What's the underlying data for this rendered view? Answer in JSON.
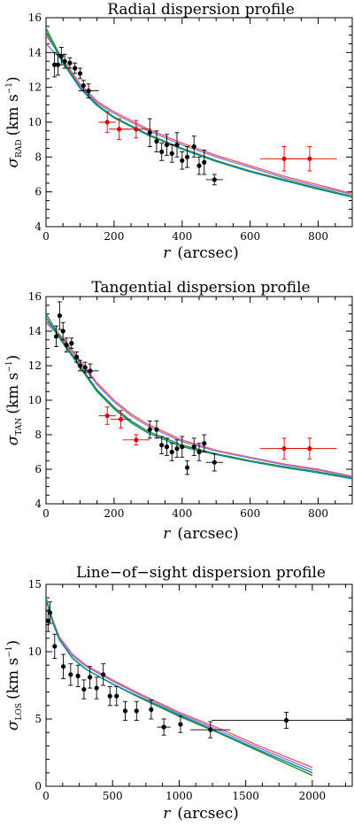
{
  "chart_data": [
    {
      "type": "scatter",
      "title": "Radial dispersion profile",
      "xlabel": "r (arcsec)",
      "ylabel": "σRAD (km s−1)",
      "ylabel_parts": {
        "sigma": "σ",
        "sub": "RAD",
        "unit": "(km s",
        "exp": "−1",
        "close": ")"
      },
      "xlabel_parts": {
        "var": "r",
        "unit": "(arcsec)"
      },
      "xlim": [
        0,
        900
      ],
      "ylim": [
        4,
        16
      ],
      "xticks": [
        0,
        200,
        400,
        600,
        800
      ],
      "yticks": [
        4,
        6,
        8,
        10,
        12,
        14,
        16
      ],
      "series": [
        {
          "marker_color": "#000000",
          "points": [
            {
              "x": 25,
              "y": 13.3,
              "xerr": 0,
              "yerr": 0.7
            },
            {
              "x": 35,
              "y": 13.3,
              "xerr": 0,
              "yerr": 0.6
            },
            {
              "x": 45,
              "y": 13.8,
              "xerr": 0,
              "yerr": 0.5
            },
            {
              "x": 55,
              "y": 13.5,
              "xerr": 0,
              "yerr": 0.4
            },
            {
              "x": 70,
              "y": 13.4,
              "xerr": 0,
              "yerr": 0.3
            },
            {
              "x": 85,
              "y": 13.1,
              "xerr": 0,
              "yerr": 0.3
            },
            {
              "x": 100,
              "y": 12.8,
              "xerr": 0,
              "yerr": 0.3
            },
            {
              "x": 110,
              "y": 12.1,
              "xerr": 0,
              "yerr": 0.3
            },
            {
              "x": 125,
              "y": 11.8,
              "xerr": 30,
              "yerr": 0.4
            },
            {
              "x": 305,
              "y": 9.4,
              "xerr": 0,
              "yerr": 0.8
            },
            {
              "x": 325,
              "y": 8.9,
              "xerr": 0,
              "yerr": 0.6
            },
            {
              "x": 340,
              "y": 8.3,
              "xerr": 0,
              "yerr": 0.5
            },
            {
              "x": 355,
              "y": 8.7,
              "xerr": 0,
              "yerr": 0.6
            },
            {
              "x": 370,
              "y": 8.2,
              "xerr": 0,
              "yerr": 0.5
            },
            {
              "x": 385,
              "y": 8.7,
              "xerr": 0,
              "yerr": 0.7
            },
            {
              "x": 400,
              "y": 7.8,
              "xerr": 0,
              "yerr": 0.5
            },
            {
              "x": 415,
              "y": 8.0,
              "xerr": 0,
              "yerr": 0.6
            },
            {
              "x": 435,
              "y": 8.6,
              "xerr": 0,
              "yerr": 0.6
            },
            {
              "x": 450,
              "y": 7.5,
              "xerr": 0,
              "yerr": 0.5
            },
            {
              "x": 465,
              "y": 7.7,
              "xerr": 0,
              "yerr": 0.7
            },
            {
              "x": 495,
              "y": 6.7,
              "xerr": 25,
              "yerr": 0.3
            }
          ]
        },
        {
          "marker_color": "#e00000",
          "points": [
            {
              "x": 180,
              "y": 10.0,
              "xerr": 25,
              "yerr": 0.6
            },
            {
              "x": 215,
              "y": 9.6,
              "xerr": 30,
              "yerr": 0.6
            },
            {
              "x": 265,
              "y": 9.6,
              "xerr": 45,
              "yerr": 0.5
            },
            {
              "x": 700,
              "y": 7.9,
              "xerr": 70,
              "yerr": 0.7
            },
            {
              "x": 775,
              "y": 7.9,
              "xerr": 80,
              "yerr": 0.7
            }
          ]
        }
      ],
      "model_curves": [
        {
          "color": "#ff5a5a",
          "x": [
            0,
            50,
            100,
            150,
            200,
            300,
            400,
            500,
            600,
            700,
            800,
            900
          ],
          "y": [
            15.0,
            13.6,
            12.2,
            11.2,
            10.6,
            9.6,
            8.8,
            8.1,
            7.5,
            6.9,
            6.4,
            5.9
          ]
        },
        {
          "color": "#8080ff",
          "x": [
            0,
            50,
            100,
            150,
            200,
            300,
            400,
            500,
            600,
            700,
            800,
            900
          ],
          "y": [
            14.5,
            13.5,
            12.1,
            11.1,
            10.5,
            9.5,
            8.7,
            8.0,
            7.4,
            6.8,
            6.3,
            5.85
          ]
        },
        {
          "color": "#2e8b2e",
          "x": [
            0,
            50,
            100,
            150,
            200,
            300,
            400,
            500,
            600,
            700,
            800,
            900
          ],
          "y": [
            15.4,
            13.5,
            12.0,
            11.0,
            10.3,
            9.3,
            8.5,
            7.8,
            7.2,
            6.7,
            6.2,
            5.75
          ]
        },
        {
          "color": "#008b8b",
          "x": [
            0,
            50,
            100,
            150,
            200,
            300,
            400,
            500,
            600,
            700,
            800,
            900
          ],
          "y": [
            15.2,
            13.4,
            11.95,
            10.95,
            10.25,
            9.25,
            8.45,
            7.75,
            7.15,
            6.65,
            6.15,
            5.7
          ]
        }
      ]
    },
    {
      "type": "scatter",
      "title": "Tangential dispersion profile",
      "xlabel": "r (arcsec)",
      "ylabel": "σTAN (km s−1)",
      "ylabel_parts": {
        "sigma": "σ",
        "sub": "TAN",
        "unit": "(km s",
        "exp": "−1",
        "close": ")"
      },
      "xlabel_parts": {
        "var": "r",
        "unit": "(arcsec)"
      },
      "xlim": [
        0,
        900
      ],
      "ylim": [
        4,
        16
      ],
      "xticks": [
        0,
        200,
        400,
        600,
        800
      ],
      "yticks": [
        4,
        6,
        8,
        10,
        12,
        14,
        16
      ],
      "series": [
        {
          "marker_color": "#000000",
          "points": [
            {
              "x": 30,
              "y": 13.7,
              "xerr": 0,
              "yerr": 0.6
            },
            {
              "x": 40,
              "y": 14.9,
              "xerr": 0,
              "yerr": 0.8
            },
            {
              "x": 50,
              "y": 14.0,
              "xerr": 0,
              "yerr": 0.5
            },
            {
              "x": 60,
              "y": 13.2,
              "xerr": 0,
              "yerr": 0.4
            },
            {
              "x": 75,
              "y": 13.3,
              "xerr": 0,
              "yerr": 0.3
            },
            {
              "x": 90,
              "y": 12.5,
              "xerr": 0,
              "yerr": 0.3
            },
            {
              "x": 100,
              "y": 12.0,
              "xerr": 0,
              "yerr": 0.3
            },
            {
              "x": 115,
              "y": 11.9,
              "xerr": 0,
              "yerr": 0.3
            },
            {
              "x": 130,
              "y": 11.7,
              "xerr": 25,
              "yerr": 0.4
            },
            {
              "x": 305,
              "y": 8.3,
              "xerr": 0,
              "yerr": 0.5
            },
            {
              "x": 325,
              "y": 8.3,
              "xerr": 0,
              "yerr": 0.5
            },
            {
              "x": 340,
              "y": 7.4,
              "xerr": 0,
              "yerr": 0.5
            },
            {
              "x": 355,
              "y": 7.3,
              "xerr": 0,
              "yerr": 0.5
            },
            {
              "x": 370,
              "y": 7.0,
              "xerr": 0,
              "yerr": 0.5
            },
            {
              "x": 385,
              "y": 7.2,
              "xerr": 0,
              "yerr": 0.5
            },
            {
              "x": 400,
              "y": 7.3,
              "xerr": 0,
              "yerr": 0.6
            },
            {
              "x": 415,
              "y": 6.1,
              "xerr": 0,
              "yerr": 0.4
            },
            {
              "x": 435,
              "y": 7.3,
              "xerr": 0,
              "yerr": 0.5
            },
            {
              "x": 450,
              "y": 7.0,
              "xerr": 0,
              "yerr": 0.5
            },
            {
              "x": 465,
              "y": 7.5,
              "xerr": 0,
              "yerr": 0.5
            },
            {
              "x": 495,
              "y": 6.4,
              "xerr": 25,
              "yerr": 0.5
            }
          ]
        },
        {
          "marker_color": "#e00000",
          "points": [
            {
              "x": 180,
              "y": 9.1,
              "xerr": 25,
              "yerr": 0.5
            },
            {
              "x": 220,
              "y": 8.9,
              "xerr": 30,
              "yerr": 0.5
            },
            {
              "x": 265,
              "y": 7.7,
              "xerr": 40,
              "yerr": 0.3
            },
            {
              "x": 700,
              "y": 7.2,
              "xerr": 70,
              "yerr": 0.6
            },
            {
              "x": 775,
              "y": 7.2,
              "xerr": 80,
              "yerr": 0.6
            }
          ]
        }
      ],
      "model_curves": [
        {
          "color": "#ff5a5a",
          "x": [
            0,
            50,
            100,
            150,
            200,
            250,
            300,
            400,
            500,
            600,
            700,
            800,
            900
          ],
          "y": [
            14.6,
            13.6,
            12.3,
            11.0,
            10.0,
            9.2,
            8.6,
            7.7,
            7.1,
            6.7,
            6.3,
            6.0,
            5.6
          ]
        },
        {
          "color": "#8080ff",
          "x": [
            0,
            50,
            100,
            150,
            200,
            250,
            300,
            400,
            500,
            600,
            700,
            800,
            900
          ],
          "y": [
            14.5,
            13.5,
            12.2,
            10.9,
            9.9,
            9.1,
            8.5,
            7.6,
            7.05,
            6.65,
            6.25,
            5.95,
            5.55
          ]
        },
        {
          "color": "#2e8b2e",
          "x": [
            0,
            50,
            100,
            150,
            200,
            250,
            300,
            400,
            500,
            600,
            700,
            800,
            900
          ],
          "y": [
            15.0,
            13.4,
            12.0,
            10.6,
            9.6,
            8.8,
            8.2,
            7.4,
            6.9,
            6.5,
            6.15,
            5.85,
            5.5
          ]
        },
        {
          "color": "#008b8b",
          "x": [
            0,
            50,
            100,
            150,
            200,
            250,
            300,
            400,
            500,
            600,
            700,
            800,
            900
          ],
          "y": [
            14.8,
            13.3,
            11.9,
            10.5,
            9.5,
            8.7,
            8.1,
            7.3,
            6.85,
            6.45,
            6.1,
            5.8,
            5.45
          ]
        }
      ]
    },
    {
      "type": "scatter",
      "title": "Line−of−sight dispersion profile",
      "xlabel": "r (arcsec)",
      "ylabel": "σLOS (km s−1)",
      "ylabel_parts": {
        "sigma": "σ",
        "sub": "LOS",
        "unit": "(km s",
        "exp": "−1",
        "close": ")"
      },
      "xlabel_parts": {
        "var": "r",
        "unit": "(arcsec)"
      },
      "xlim": [
        0,
        2300
      ],
      "ylim": [
        0,
        15
      ],
      "xticks": [
        0,
        500,
        1000,
        1500,
        2000
      ],
      "yticks": [
        0,
        5,
        10,
        15
      ],
      "series": [
        {
          "marker_color": "#000000",
          "points": [
            {
              "x": 15,
              "y": 12.3,
              "xerr": 0,
              "yerr": 0.8
            },
            {
              "x": 30,
              "y": 12.9,
              "xerr": 0,
              "yerr": 0.8
            },
            {
              "x": 65,
              "y": 10.4,
              "xerr": 0,
              "yerr": 0.9
            },
            {
              "x": 130,
              "y": 8.9,
              "xerr": 0,
              "yerr": 0.9
            },
            {
              "x": 185,
              "y": 8.3,
              "xerr": 0,
              "yerr": 0.8
            },
            {
              "x": 240,
              "y": 8.2,
              "xerr": 0,
              "yerr": 0.8
            },
            {
              "x": 285,
              "y": 7.2,
              "xerr": 0,
              "yerr": 0.7
            },
            {
              "x": 330,
              "y": 8.1,
              "xerr": 0,
              "yerr": 0.8
            },
            {
              "x": 380,
              "y": 7.3,
              "xerr": 0,
              "yerr": 0.8
            },
            {
              "x": 430,
              "y": 8.3,
              "xerr": 0,
              "yerr": 0.8
            },
            {
              "x": 480,
              "y": 6.7,
              "xerr": 0,
              "yerr": 0.7
            },
            {
              "x": 530,
              "y": 6.7,
              "xerr": 0,
              "yerr": 0.7
            },
            {
              "x": 595,
              "y": 5.6,
              "xerr": 0,
              "yerr": 0.7
            },
            {
              "x": 680,
              "y": 5.6,
              "xerr": 0,
              "yerr": 0.7
            },
            {
              "x": 790,
              "y": 5.7,
              "xerr": 0,
              "yerr": 0.7
            },
            {
              "x": 885,
              "y": 4.4,
              "xerr": 50,
              "yerr": 0.6
            },
            {
              "x": 1010,
              "y": 4.6,
              "xerr": 0,
              "yerr": 0.6
            },
            {
              "x": 1235,
              "y": 4.2,
              "xerr": 150,
              "yerr": 0.6
            },
            {
              "x": 1805,
              "y": 4.9,
              "xerr": 560,
              "yerr": 0.6
            }
          ]
        }
      ],
      "model_curves": [
        {
          "color": "#ff5a5a",
          "x": [
            0,
            50,
            100,
            200,
            300,
            500,
            700,
            1000,
            1300,
            1600,
            2000
          ],
          "y": [
            14.0,
            12.4,
            11.1,
            9.8,
            9.0,
            7.9,
            6.9,
            5.5,
            4.3,
            3.0,
            1.4
          ]
        },
        {
          "color": "#8080ff",
          "x": [
            0,
            50,
            100,
            200,
            300,
            500,
            700,
            1000,
            1300,
            1600,
            2000
          ],
          "y": [
            13.8,
            12.3,
            11.0,
            9.7,
            8.9,
            7.8,
            6.8,
            5.4,
            4.15,
            2.85,
            1.2
          ]
        },
        {
          "color": "#2e8b2e",
          "x": [
            0,
            50,
            100,
            200,
            300,
            500,
            700,
            1000,
            1300,
            1600,
            2000
          ],
          "y": [
            14.0,
            12.2,
            10.9,
            9.5,
            8.7,
            7.6,
            6.6,
            5.2,
            3.95,
            2.6,
            0.8
          ]
        },
        {
          "color": "#008b8b",
          "x": [
            0,
            50,
            100,
            200,
            300,
            500,
            700,
            1000,
            1300,
            1600,
            2000
          ],
          "y": [
            13.9,
            12.2,
            10.9,
            9.5,
            8.7,
            7.6,
            6.65,
            5.3,
            4.0,
            2.7,
            1.0
          ]
        }
      ]
    }
  ]
}
